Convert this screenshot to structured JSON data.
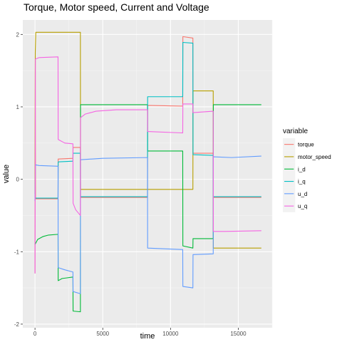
{
  "chart_data": {
    "type": "line",
    "title": "Torque, Motor speed, Current and Voltage",
    "xlabel": "time",
    "ylabel": "value",
    "xlim": [
      -900,
      17500
    ],
    "ylim": [
      -2.05,
      2.2
    ],
    "xticks": [
      0,
      5000,
      10000,
      15000
    ],
    "xtick_labels": [
      "0",
      "5000",
      "10000",
      "15000"
    ],
    "yticks": [
      -2,
      -1,
      0,
      1,
      2
    ],
    "ytick_labels": [
      "-2",
      "-1",
      "0",
      "1",
      "2"
    ],
    "grid": true,
    "legend_title": "variable",
    "legend_position": "right",
    "series": [
      {
        "name": "torque",
        "color": "#F8766D",
        "points": [
          [
            0,
            -1.3
          ],
          [
            20,
            1.7
          ],
          [
            40,
            -0.27
          ],
          [
            1700,
            -0.27
          ],
          [
            1710,
            0.28
          ],
          [
            2800,
            0.29
          ],
          [
            2810,
            0.44
          ],
          [
            3350,
            0.44
          ],
          [
            3360,
            -0.25
          ],
          [
            8300,
            -0.25
          ],
          [
            8310,
            1.02
          ],
          [
            10900,
            1.01
          ],
          [
            10910,
            1.97
          ],
          [
            11650,
            1.95
          ],
          [
            11660,
            0.36
          ],
          [
            13150,
            0.36
          ],
          [
            13160,
            -0.25
          ],
          [
            16700,
            -0.25
          ]
        ]
      },
      {
        "name": "motor_speed",
        "color": "#B79F00",
        "points": [
          [
            0,
            -0.2
          ],
          [
            20,
            1.75
          ],
          [
            60,
            2.03
          ],
          [
            3350,
            2.03
          ],
          [
            3360,
            -0.14
          ],
          [
            11650,
            -0.14
          ],
          [
            11660,
            1.22
          ],
          [
            13150,
            1.22
          ],
          [
            13160,
            -0.95
          ],
          [
            16700,
            -0.95
          ]
        ]
      },
      {
        "name": "i_d",
        "color": "#00BA38",
        "points": [
          [
            0,
            -0.9
          ],
          [
            200,
            -0.83
          ],
          [
            600,
            -0.79
          ],
          [
            1000,
            -0.77
          ],
          [
            1700,
            -0.76
          ],
          [
            1710,
            -1.4
          ],
          [
            2000,
            -1.37
          ],
          [
            2400,
            -1.36
          ],
          [
            2800,
            -1.35
          ],
          [
            2810,
            -1.82
          ],
          [
            3350,
            -1.83
          ],
          [
            3360,
            1.03
          ],
          [
            8300,
            1.03
          ],
          [
            8310,
            0.39
          ],
          [
            10900,
            0.39
          ],
          [
            10910,
            -0.92
          ],
          [
            11650,
            -0.95
          ],
          [
            11660,
            -0.82
          ],
          [
            13150,
            -0.82
          ],
          [
            13160,
            1.03
          ],
          [
            16700,
            1.03
          ]
        ]
      },
      {
        "name": "i_q",
        "color": "#00BFC4",
        "points": [
          [
            0,
            -0.26
          ],
          [
            40,
            -0.26
          ],
          [
            1700,
            -0.26
          ],
          [
            1710,
            0.24
          ],
          [
            2800,
            0.25
          ],
          [
            2810,
            0.36
          ],
          [
            3350,
            0.36
          ],
          [
            3360,
            -0.24
          ],
          [
            8300,
            -0.24
          ],
          [
            8310,
            1.14
          ],
          [
            10900,
            1.14
          ],
          [
            10910,
            1.89
          ],
          [
            11650,
            1.88
          ],
          [
            11660,
            0.34
          ],
          [
            13150,
            0.33
          ],
          [
            13160,
            -0.24
          ],
          [
            16700,
            -0.24
          ]
        ]
      },
      {
        "name": "u_d",
        "color": "#619CFF",
        "points": [
          [
            0,
            -0.3
          ],
          [
            30,
            0.2
          ],
          [
            300,
            0.19
          ],
          [
            1700,
            0.18
          ],
          [
            1710,
            -1.22
          ],
          [
            2200,
            -1.25
          ],
          [
            2800,
            -1.28
          ],
          [
            2810,
            -1.55
          ],
          [
            3350,
            -1.58
          ],
          [
            3360,
            0.27
          ],
          [
            5000,
            0.29
          ],
          [
            8300,
            0.3
          ],
          [
            8310,
            -0.95
          ],
          [
            10900,
            -0.97
          ],
          [
            10910,
            -1.48
          ],
          [
            11650,
            -1.5
          ],
          [
            11660,
            -1.04
          ],
          [
            13150,
            -1.03
          ],
          [
            13160,
            0.31
          ],
          [
            14500,
            0.3
          ],
          [
            16700,
            0.32
          ]
        ]
      },
      {
        "name": "u_q",
        "color": "#F564E3",
        "points": [
          [
            0,
            -1.3
          ],
          [
            30,
            1.66
          ],
          [
            300,
            1.68
          ],
          [
            1700,
            1.69
          ],
          [
            1710,
            0.55
          ],
          [
            2200,
            0.5
          ],
          [
            2800,
            0.49
          ],
          [
            2810,
            -0.33
          ],
          [
            3000,
            -0.42
          ],
          [
            3350,
            -0.5
          ],
          [
            3360,
            0.85
          ],
          [
            3700,
            0.9
          ],
          [
            4500,
            0.94
          ],
          [
            6000,
            0.96
          ],
          [
            8300,
            0.96
          ],
          [
            8310,
            0.66
          ],
          [
            10900,
            0.64
          ],
          [
            10910,
            1.04
          ],
          [
            11650,
            1.04
          ],
          [
            11660,
            0.92
          ],
          [
            13150,
            0.94
          ],
          [
            13160,
            -0.72
          ],
          [
            14000,
            -0.72
          ],
          [
            16700,
            -0.71
          ]
        ]
      }
    ]
  }
}
